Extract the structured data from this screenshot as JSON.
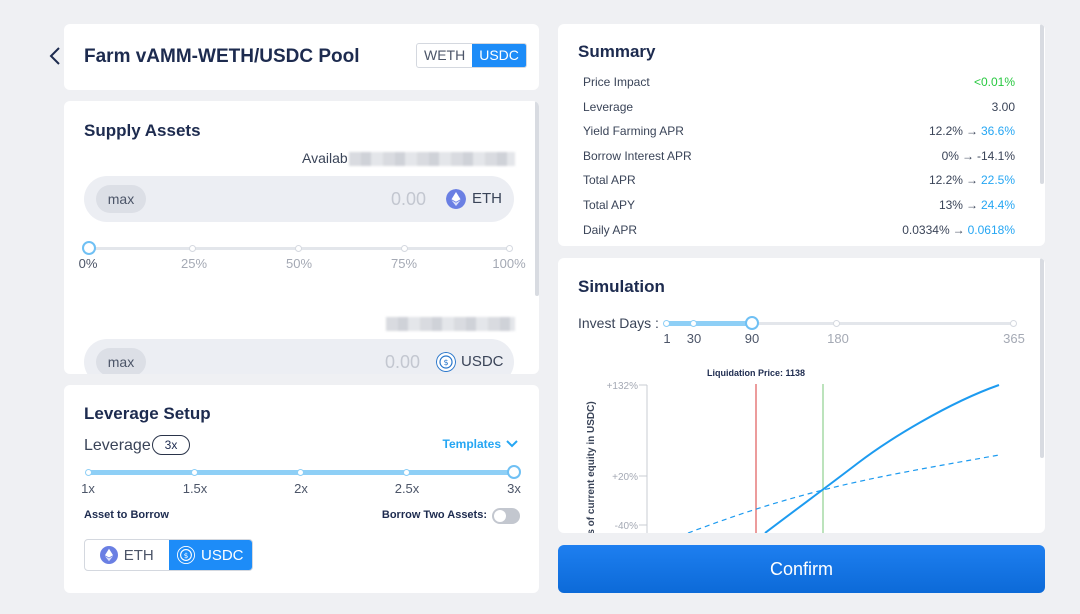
{
  "header": {
    "title": "Farm vAMM-WETH/USDC Pool",
    "token_toggle": [
      "WETH",
      "USDC"
    ],
    "token_selected": "USDC"
  },
  "supply": {
    "title": "Supply Assets",
    "available_label": "Availab",
    "inputs": [
      {
        "max_label": "max",
        "amount": "0.00",
        "token": "ETH",
        "icon": "eth-icon"
      },
      {
        "max_label": "max",
        "amount": "0.00",
        "token": "USDC",
        "icon": "usdc-icon"
      }
    ],
    "slider": {
      "ticks": [
        "0%",
        "25%",
        "50%",
        "75%",
        "100%"
      ],
      "value_percent": 0
    }
  },
  "leverage": {
    "title": "Leverage Setup",
    "label": "Leverage",
    "badge": "3x",
    "templates_label": "Templates",
    "slider": {
      "ticks": [
        "1x",
        "1.5x",
        "2x",
        "2.5x",
        "3x"
      ],
      "value": 3
    },
    "asset_to_borrow_label": "Asset to Borrow",
    "borrow_two_label": "Borrow Two Assets:",
    "borrow_two_enabled": false,
    "borrow_options": [
      {
        "label": "ETH",
        "icon": "eth-icon"
      },
      {
        "label": "USDC",
        "icon": "usdc-icon"
      }
    ],
    "borrow_selected": "USDC"
  },
  "summary": {
    "title": "Summary",
    "rows": [
      {
        "label": "Price Impact",
        "from": "",
        "arrow": "",
        "to": "<0.01%",
        "to_color": "#28c840"
      },
      {
        "label": "Leverage",
        "from": "",
        "arrow": "",
        "to": "3.00",
        "to_color": "#3a4458"
      },
      {
        "label": "Yield Farming APR",
        "from": "12.2%",
        "arrow": "→",
        "to": "36.6%",
        "to_color": "#25a6f3"
      },
      {
        "label": "Borrow Interest APR",
        "from": "0%",
        "arrow": "→",
        "to": "-14.1%",
        "to_color": "#3a4458"
      },
      {
        "label": "Total APR",
        "from": "12.2%",
        "arrow": "→",
        "to": "22.5%",
        "to_color": "#25a6f3"
      },
      {
        "label": "Total APY",
        "from": "13%",
        "arrow": "→",
        "to": "24.4%",
        "to_color": "#25a6f3"
      },
      {
        "label": "Daily APR",
        "from": "0.0334%",
        "arrow": "→",
        "to": "0.0618%",
        "to_color": "#25a6f3"
      }
    ]
  },
  "simulation": {
    "title": "Simulation",
    "invest_days_label": "Invest Days :",
    "days_ticks": [
      "1",
      "30",
      "90",
      "180",
      "365"
    ],
    "days_value": 90
  },
  "chart_data": {
    "type": "line",
    "annotation": "Liquidation Price: 1138",
    "ylabel": "s of current equity in USDC)",
    "y_ticks": [
      "+132%",
      "+20%",
      "-40%"
    ],
    "series": [
      {
        "style": "solid",
        "color": "#1d9bf0"
      },
      {
        "style": "dashed",
        "color": "#1d9bf0"
      }
    ],
    "liquidation_line_color": "#e05a5a",
    "current_price_line_color": "#8fd08f"
  },
  "confirm_label": "Confirm"
}
